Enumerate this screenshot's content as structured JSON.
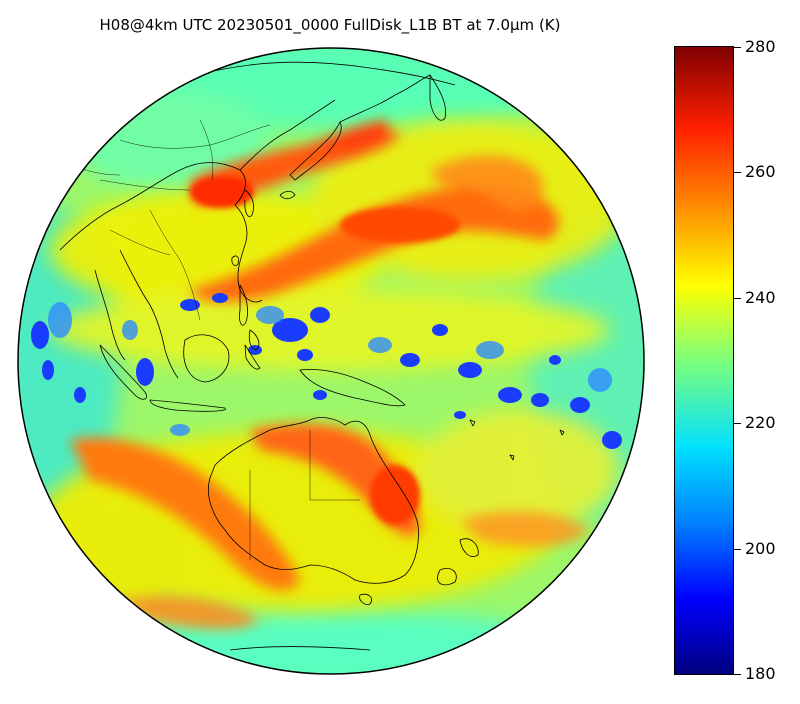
{
  "title": "H08@4km UTC 20230501_0000 FullDisk_L1B BT at 7.0μm (K)",
  "colorbar": {
    "min": 180,
    "max": 280,
    "ticks": [
      "280",
      "260",
      "240",
      "220",
      "200",
      "180"
    ],
    "colormap": "jet"
  },
  "colors": {
    "bg_cyan": "#66ffb0",
    "yellow": "#ffe600",
    "orange": "#ff8c00",
    "red": "#ff3300",
    "blue": "#1e50ff",
    "coast": "#000000"
  }
}
